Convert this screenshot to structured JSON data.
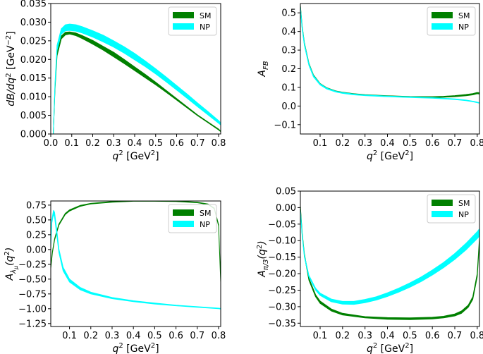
{
  "colors": {
    "sm": "#008000",
    "np": "#00ffff",
    "axis": "#000000"
  },
  "chart_data": [
    {
      "id": "dbdq2",
      "type": "area",
      "title": "",
      "xlabel_main": "q",
      "xlabel_sup": "2",
      "xlabel_unit": " [GeV",
      "xlabel_unit_sup": "2",
      "xlabel_close": "]",
      "ylabel": "dB/dq² [GeV⁻²]",
      "xlim": [
        0.0,
        0.81
      ],
      "ylim": [
        0.0,
        0.035
      ],
      "xticks": [
        0.0,
        0.1,
        0.2,
        0.3,
        0.4,
        0.5,
        0.6,
        0.7,
        0.8
      ],
      "xtick_labels": [
        "0.0",
        "0.1",
        "0.2",
        "0.3",
        "0.4",
        "0.5",
        "0.6",
        "0.7",
        "0.8"
      ],
      "yticks": [
        0.0,
        0.005,
        0.01,
        0.015,
        0.02,
        0.025,
        0.03,
        0.035
      ],
      "ytick_labels": [
        "0.000",
        "0.005",
        "0.010",
        "0.015",
        "0.020",
        "0.025",
        "0.030",
        "0.035"
      ],
      "legend": [
        "SM",
        "NP"
      ],
      "legend_position": "top-right",
      "series": [
        {
          "name": "SM",
          "x": [
            0.012,
            0.02,
            0.03,
            0.05,
            0.07,
            0.09,
            0.12,
            0.15,
            0.2,
            0.25,
            0.3,
            0.35,
            0.4,
            0.45,
            0.5,
            0.55,
            0.6,
            0.65,
            0.7,
            0.75,
            0.8,
            0.81
          ],
          "low": [
            0.0,
            0.012,
            0.021,
            0.0255,
            0.0266,
            0.0268,
            0.0264,
            0.0256,
            0.0241,
            0.0225,
            0.0207,
            0.0189,
            0.017,
            0.0151,
            0.0132,
            0.0112,
            0.0091,
            0.007,
            0.0049,
            0.003,
            0.0011,
            0.0006
          ],
          "high": [
            0.0,
            0.0125,
            0.0218,
            0.0263,
            0.0273,
            0.0274,
            0.0271,
            0.0264,
            0.0251,
            0.0235,
            0.0219,
            0.02,
            0.018,
            0.016,
            0.0139,
            0.0117,
            0.0095,
            0.0073,
            0.0051,
            0.0032,
            0.0013,
            0.0008
          ]
        },
        {
          "name": "NP",
          "x": [
            0.012,
            0.02,
            0.03,
            0.05,
            0.07,
            0.09,
            0.12,
            0.15,
            0.2,
            0.25,
            0.3,
            0.35,
            0.4,
            0.45,
            0.5,
            0.55,
            0.6,
            0.65,
            0.7,
            0.75,
            0.8,
            0.81
          ],
          "low": [
            0.0,
            0.0128,
            0.0225,
            0.0268,
            0.0277,
            0.0278,
            0.0276,
            0.0271,
            0.026,
            0.0247,
            0.0233,
            0.0217,
            0.0199,
            0.0181,
            0.0161,
            0.014,
            0.0118,
            0.0096,
            0.0073,
            0.0051,
            0.0029,
            0.0024
          ],
          "high": [
            0.0,
            0.0136,
            0.0238,
            0.0282,
            0.0293,
            0.0295,
            0.0293,
            0.0288,
            0.0277,
            0.0265,
            0.025,
            0.0234,
            0.0216,
            0.0196,
            0.0175,
            0.0153,
            0.013,
            0.0107,
            0.0083,
            0.006,
            0.0036,
            0.003
          ]
        }
      ]
    },
    {
      "id": "afb",
      "type": "area",
      "title": "",
      "xlabel_main": "q",
      "xlabel_sup": "2",
      "xlabel_unit": " [GeV",
      "xlabel_unit_sup": "2",
      "xlabel_close": "]",
      "ylabel": "A_FB",
      "xlim": [
        0.012,
        0.81
      ],
      "ylim": [
        -0.15,
        0.55
      ],
      "xticks": [
        0.1,
        0.2,
        0.3,
        0.4,
        0.5,
        0.6,
        0.7,
        0.8
      ],
      "xtick_labels": [
        "0.1",
        "0.2",
        "0.3",
        "0.4",
        "0.5",
        "0.6",
        "0.7",
        "0.8"
      ],
      "yticks": [
        -0.1,
        0.0,
        0.1,
        0.2,
        0.3,
        0.4,
        0.5
      ],
      "ytick_labels": [
        "−0.1",
        "0.0",
        "0.1",
        "0.2",
        "0.3",
        "0.4",
        "0.5"
      ],
      "legend": [
        "SM",
        "NP"
      ],
      "legend_position": "top-right",
      "series": [
        {
          "name": "SM",
          "x": [
            0.012,
            0.02,
            0.03,
            0.05,
            0.07,
            0.1,
            0.13,
            0.17,
            0.2,
            0.25,
            0.3,
            0.4,
            0.5,
            0.6,
            0.65,
            0.7,
            0.75,
            0.78,
            0.8,
            0.81
          ],
          "low": [
            0.53,
            0.42,
            0.33,
            0.22,
            0.16,
            0.115,
            0.093,
            0.077,
            0.07,
            0.062,
            0.057,
            0.051,
            0.047,
            0.046,
            0.047,
            0.05,
            0.055,
            0.06,
            0.066,
            0.064
          ],
          "high": [
            0.54,
            0.43,
            0.34,
            0.23,
            0.168,
            0.121,
            0.098,
            0.081,
            0.074,
            0.066,
            0.061,
            0.055,
            0.051,
            0.05,
            0.052,
            0.056,
            0.062,
            0.067,
            0.073,
            0.071
          ]
        },
        {
          "name": "NP",
          "x": [
            0.012,
            0.02,
            0.03,
            0.05,
            0.07,
            0.1,
            0.13,
            0.17,
            0.2,
            0.25,
            0.3,
            0.4,
            0.5,
            0.6,
            0.65,
            0.7,
            0.75,
            0.78,
            0.8,
            0.81
          ],
          "low": [
            0.525,
            0.415,
            0.325,
            0.218,
            0.157,
            0.113,
            0.091,
            0.075,
            0.068,
            0.06,
            0.056,
            0.05,
            0.046,
            0.042,
            0.039,
            0.035,
            0.029,
            0.023,
            0.018,
            0.015
          ],
          "high": [
            0.535,
            0.425,
            0.335,
            0.226,
            0.164,
            0.119,
            0.096,
            0.079,
            0.072,
            0.064,
            0.059,
            0.053,
            0.049,
            0.045,
            0.042,
            0.038,
            0.032,
            0.026,
            0.021,
            0.018
          ]
        }
      ]
    },
    {
      "id": "alambda",
      "type": "area",
      "title": "",
      "xlabel_main": "q",
      "xlabel_sup": "2",
      "xlabel_unit": " [GeV",
      "xlabel_unit_sup": "2",
      "xlabel_close": "]",
      "ylabel": "A_λμ(q²)",
      "xlim": [
        0.012,
        0.81
      ],
      "ylim": [
        -1.3,
        0.82
      ],
      "xticks": [
        0.1,
        0.2,
        0.3,
        0.4,
        0.5,
        0.6,
        0.7,
        0.8
      ],
      "xtick_labels": [
        "0.1",
        "0.2",
        "0.3",
        "0.4",
        "0.5",
        "0.6",
        "0.7",
        "0.8"
      ],
      "yticks": [
        -1.25,
        -1.0,
        -0.75,
        -0.5,
        -0.25,
        0.0,
        0.25,
        0.5,
        0.75
      ],
      "ytick_labels": [
        "−1.25",
        "−1.00",
        "−0.75",
        "−0.50",
        "−0.25",
        "0.00",
        "0.25",
        "0.50",
        "0.75"
      ],
      "legend": [
        "SM",
        "NP"
      ],
      "legend_position": "top-right",
      "series": [
        {
          "name": "SM",
          "x": [
            0.012,
            0.02,
            0.03,
            0.05,
            0.08,
            0.1,
            0.15,
            0.2,
            0.3,
            0.4,
            0.5,
            0.6,
            0.7,
            0.75,
            0.78,
            0.8,
            0.81
          ],
          "low": [
            -0.32,
            -0.05,
            0.16,
            0.41,
            0.59,
            0.65,
            0.73,
            0.77,
            0.8,
            0.815,
            0.815,
            0.81,
            0.79,
            0.76,
            0.69,
            0.4,
            -0.55
          ],
          "high": [
            -0.3,
            -0.03,
            0.18,
            0.43,
            0.61,
            0.67,
            0.745,
            0.78,
            0.81,
            0.825,
            0.825,
            0.82,
            0.8,
            0.77,
            0.7,
            0.42,
            -0.53
          ]
        },
        {
          "name": "NP",
          "x": [
            0.012,
            0.017,
            0.025,
            0.03,
            0.04,
            0.05,
            0.07,
            0.1,
            0.15,
            0.2,
            0.3,
            0.4,
            0.5,
            0.6,
            0.7,
            0.8,
            0.81
          ],
          "low": [
            0.05,
            0.45,
            0.6,
            0.55,
            0.25,
            -0.05,
            -0.36,
            -0.55,
            -0.68,
            -0.75,
            -0.83,
            -0.88,
            -0.92,
            -0.95,
            -0.975,
            -1.0,
            -1.005
          ],
          "high": [
            0.09,
            0.5,
            0.66,
            0.63,
            0.33,
            0.01,
            -0.3,
            -0.5,
            -0.64,
            -0.72,
            -0.81,
            -0.865,
            -0.905,
            -0.94,
            -0.965,
            -0.99,
            -0.995
          ]
        }
      ]
    },
    {
      "id": "api3",
      "type": "area",
      "title": "",
      "xlabel_main": "q",
      "xlabel_sup": "2",
      "xlabel_unit": " [GeV",
      "xlabel_unit_sup": "2",
      "xlabel_close": "]",
      "ylabel": "A_π/3(q²)",
      "xlim": [
        0.012,
        0.81
      ],
      "ylim": [
        -0.36,
        0.05
      ],
      "xticks": [
        0.1,
        0.2,
        0.3,
        0.4,
        0.5,
        0.6,
        0.7,
        0.8
      ],
      "xtick_labels": [
        "0.1",
        "0.2",
        "0.3",
        "0.4",
        "0.5",
        "0.6",
        "0.7",
        "0.8"
      ],
      "yticks": [
        -0.35,
        -0.3,
        -0.25,
        -0.2,
        -0.15,
        -0.1,
        -0.05,
        0.0,
        0.05
      ],
      "ytick_labels": [
        "−0.35",
        "−0.30",
        "−0.25",
        "−0.20",
        "−0.15",
        "−0.10",
        "−0.05",
        "0.00",
        "0.05"
      ],
      "legend": [
        "SM",
        "NP"
      ],
      "legend_position": "top-right",
      "series": [
        {
          "name": "SM",
          "x": [
            0.012,
            0.02,
            0.03,
            0.05,
            0.08,
            0.1,
            0.15,
            0.2,
            0.3,
            0.4,
            0.5,
            0.6,
            0.65,
            0.7,
            0.73,
            0.76,
            0.78,
            0.8,
            0.81
          ],
          "low": [
            0.0,
            -0.08,
            -0.145,
            -0.22,
            -0.27,
            -0.29,
            -0.313,
            -0.325,
            -0.334,
            -0.338,
            -0.339,
            -0.337,
            -0.334,
            -0.328,
            -0.32,
            -0.302,
            -0.278,
            -0.21,
            -0.1
          ],
          "high": [
            0.005,
            -0.075,
            -0.14,
            -0.214,
            -0.264,
            -0.283,
            -0.307,
            -0.32,
            -0.33,
            -0.333,
            -0.334,
            -0.332,
            -0.329,
            -0.322,
            -0.313,
            -0.295,
            -0.27,
            -0.2,
            -0.09
          ]
        },
        {
          "name": "NP",
          "x": [
            0.012,
            0.02,
            0.03,
            0.05,
            0.08,
            0.1,
            0.15,
            0.2,
            0.25,
            0.3,
            0.35,
            0.4,
            0.45,
            0.5,
            0.55,
            0.6,
            0.65,
            0.7,
            0.75,
            0.8,
            0.81
          ],
          "low": [
            -0.01,
            -0.085,
            -0.15,
            -0.21,
            -0.25,
            -0.266,
            -0.285,
            -0.292,
            -0.293,
            -0.288,
            -0.28,
            -0.269,
            -0.256,
            -0.241,
            -0.224,
            -0.204,
            -0.182,
            -0.157,
            -0.128,
            -0.094,
            -0.086
          ],
          "high": [
            -0.006,
            -0.08,
            -0.145,
            -0.205,
            -0.244,
            -0.259,
            -0.277,
            -0.284,
            -0.284,
            -0.278,
            -0.27,
            -0.258,
            -0.244,
            -0.228,
            -0.21,
            -0.189,
            -0.166,
            -0.139,
            -0.108,
            -0.073,
            -0.064
          ]
        }
      ]
    }
  ]
}
